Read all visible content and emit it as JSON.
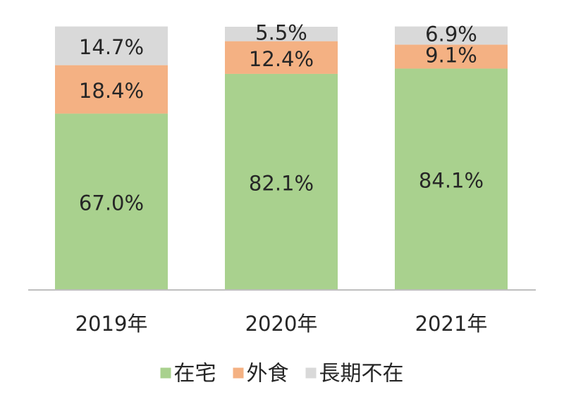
{
  "chart_data": {
    "type": "bar",
    "stacked": true,
    "normalized_percent": true,
    "categories": [
      "2019年",
      "2020年",
      "2021年"
    ],
    "series": [
      {
        "name": "在宅",
        "values": [
          67.0,
          82.1,
          84.1
        ],
        "labels": [
          "67.0%",
          "82.1%",
          "84.1%"
        ],
        "color": "#a9d18e"
      },
      {
        "name": "外食",
        "values": [
          18.4,
          12.4,
          9.1
        ],
        "labels": [
          "18.4%",
          "12.4%",
          "9.1%"
        ],
        "color": "#f4b183"
      },
      {
        "name": "長期不在",
        "values": [
          14.7,
          5.5,
          6.9
        ],
        "labels": [
          "14.7%",
          "5.5%",
          "6.9%"
        ],
        "color": "#d9d9d9"
      }
    ],
    "ylim": [
      0,
      100
    ],
    "grid": false,
    "legend_position": "bottom",
    "axis_color": "#bfbfbf",
    "text_color": "#262626"
  }
}
